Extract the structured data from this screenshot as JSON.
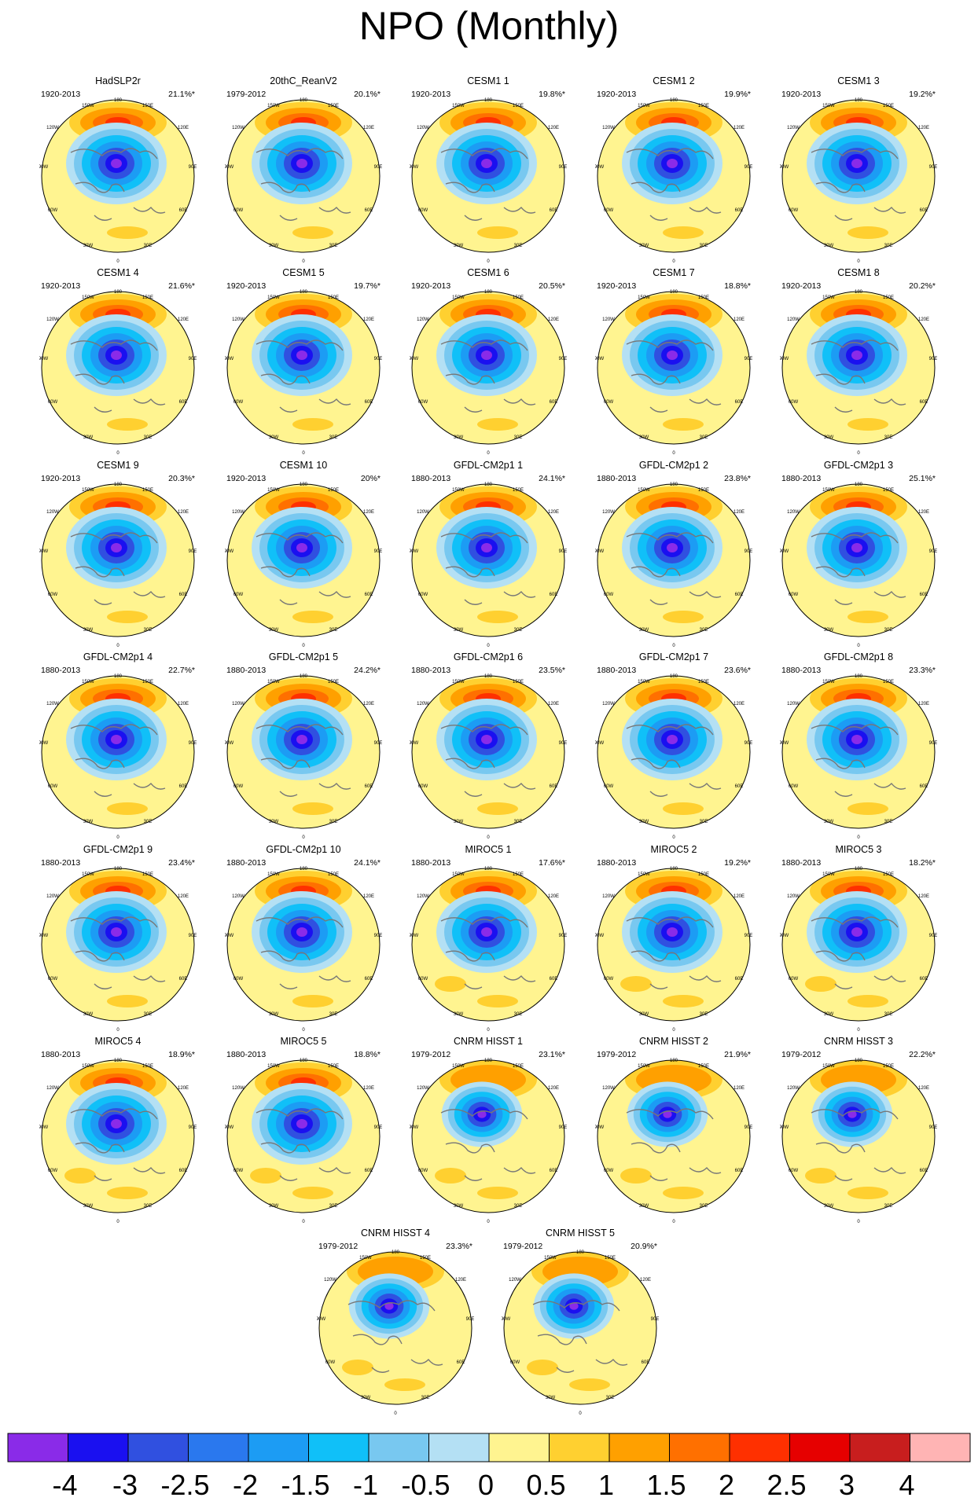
{
  "title": "NPO (Monthly)",
  "lon_labels": {
    "top": "180",
    "tl": "150W",
    "tr": "150E",
    "ul": "120W",
    "ur": "120E",
    "l": "90W",
    "r": "90E",
    "ll": "60W",
    "lr": "60E",
    "bl": "30W",
    "br": "30E",
    "bottom": "0"
  },
  "panels": [
    {
      "name": "HadSLP2r",
      "period": "1920-2013",
      "pct": "21.1%*"
    },
    {
      "name": "20thC_ReanV2",
      "period": "1979-2012",
      "pct": "20.1%*"
    },
    {
      "name": "CESM1 1",
      "period": "1920-2013",
      "pct": "19.8%*"
    },
    {
      "name": "CESM1 2",
      "period": "1920-2013",
      "pct": "19.9%*"
    },
    {
      "name": "CESM1 3",
      "period": "1920-2013",
      "pct": "19.2%*"
    },
    {
      "name": "CESM1 4",
      "period": "1920-2013",
      "pct": "21.6%*"
    },
    {
      "name": "CESM1 5",
      "period": "1920-2013",
      "pct": "19.7%*"
    },
    {
      "name": "CESM1 6",
      "period": "1920-2013",
      "pct": "20.5%*"
    },
    {
      "name": "CESM1 7",
      "period": "1920-2013",
      "pct": "18.8%*"
    },
    {
      "name": "CESM1 8",
      "period": "1920-2013",
      "pct": "20.2%*"
    },
    {
      "name": "CESM1 9",
      "period": "1920-2013",
      "pct": "20.3%*"
    },
    {
      "name": "CESM1 10",
      "period": "1920-2013",
      "pct": "20%*"
    },
    {
      "name": "GFDL-CM2p1 1",
      "period": "1880-2013",
      "pct": "24.1%*"
    },
    {
      "name": "GFDL-CM2p1 2",
      "period": "1880-2013",
      "pct": "23.8%*"
    },
    {
      "name": "GFDL-CM2p1 3",
      "period": "1880-2013",
      "pct": "25.1%*"
    },
    {
      "name": "GFDL-CM2p1 4",
      "period": "1880-2013",
      "pct": "22.7%*"
    },
    {
      "name": "GFDL-CM2p1 5",
      "period": "1880-2013",
      "pct": "24.2%*"
    },
    {
      "name": "GFDL-CM2p1 6",
      "period": "1880-2013",
      "pct": "23.5%*"
    },
    {
      "name": "GFDL-CM2p1 7",
      "period": "1880-2013",
      "pct": "23.6%*"
    },
    {
      "name": "GFDL-CM2p1 8",
      "period": "1880-2013",
      "pct": "23.3%*"
    },
    {
      "name": "GFDL-CM2p1 9",
      "period": "1880-2013",
      "pct": "23.4%*"
    },
    {
      "name": "GFDL-CM2p1 10",
      "period": "1880-2013",
      "pct": "24.1%*"
    },
    {
      "name": "MIROC5 1",
      "period": "1880-2013",
      "pct": "17.6%*"
    },
    {
      "name": "MIROC5 2",
      "period": "1880-2013",
      "pct": "19.2%*"
    },
    {
      "name": "MIROC5 3",
      "period": "1880-2013",
      "pct": "18.2%*"
    },
    {
      "name": "MIROC5 4",
      "period": "1880-2013",
      "pct": "18.9%*"
    },
    {
      "name": "MIROC5 5",
      "period": "1880-2013",
      "pct": "18.8%*"
    },
    {
      "name": "CNRM HISST 1",
      "period": "1979-2012",
      "pct": "23.1%*"
    },
    {
      "name": "CNRM HISST 2",
      "period": "1979-2012",
      "pct": "21.9%*"
    },
    {
      "name": "CNRM HISST 3",
      "period": "1979-2012",
      "pct": "22.2%*"
    },
    {
      "name": "CNRM HISST 4",
      "period": "1979-2012",
      "pct": "23.3%*"
    },
    {
      "name": "CNRM HISST 5",
      "period": "1979-2012",
      "pct": "20.9%*"
    }
  ],
  "colorbar": {
    "labels": [
      "-4",
      "-3",
      "-2.5",
      "-2",
      "-1.5",
      "-1",
      "-0.5",
      "0",
      "0.5",
      "1",
      "1.5",
      "2",
      "2.5",
      "3",
      "4"
    ],
    "colors": [
      "#8a2be8",
      "#1a10f0",
      "#3050e0",
      "#2a78ee",
      "#1c9cf4",
      "#10c0f8",
      "#78c8f0",
      "#b4e0f4",
      "#fff490",
      "#ffd030",
      "#ffa000",
      "#ff7000",
      "#ff3000",
      "#e60000",
      "#c81e1e",
      "#ffb4b4"
    ]
  }
}
